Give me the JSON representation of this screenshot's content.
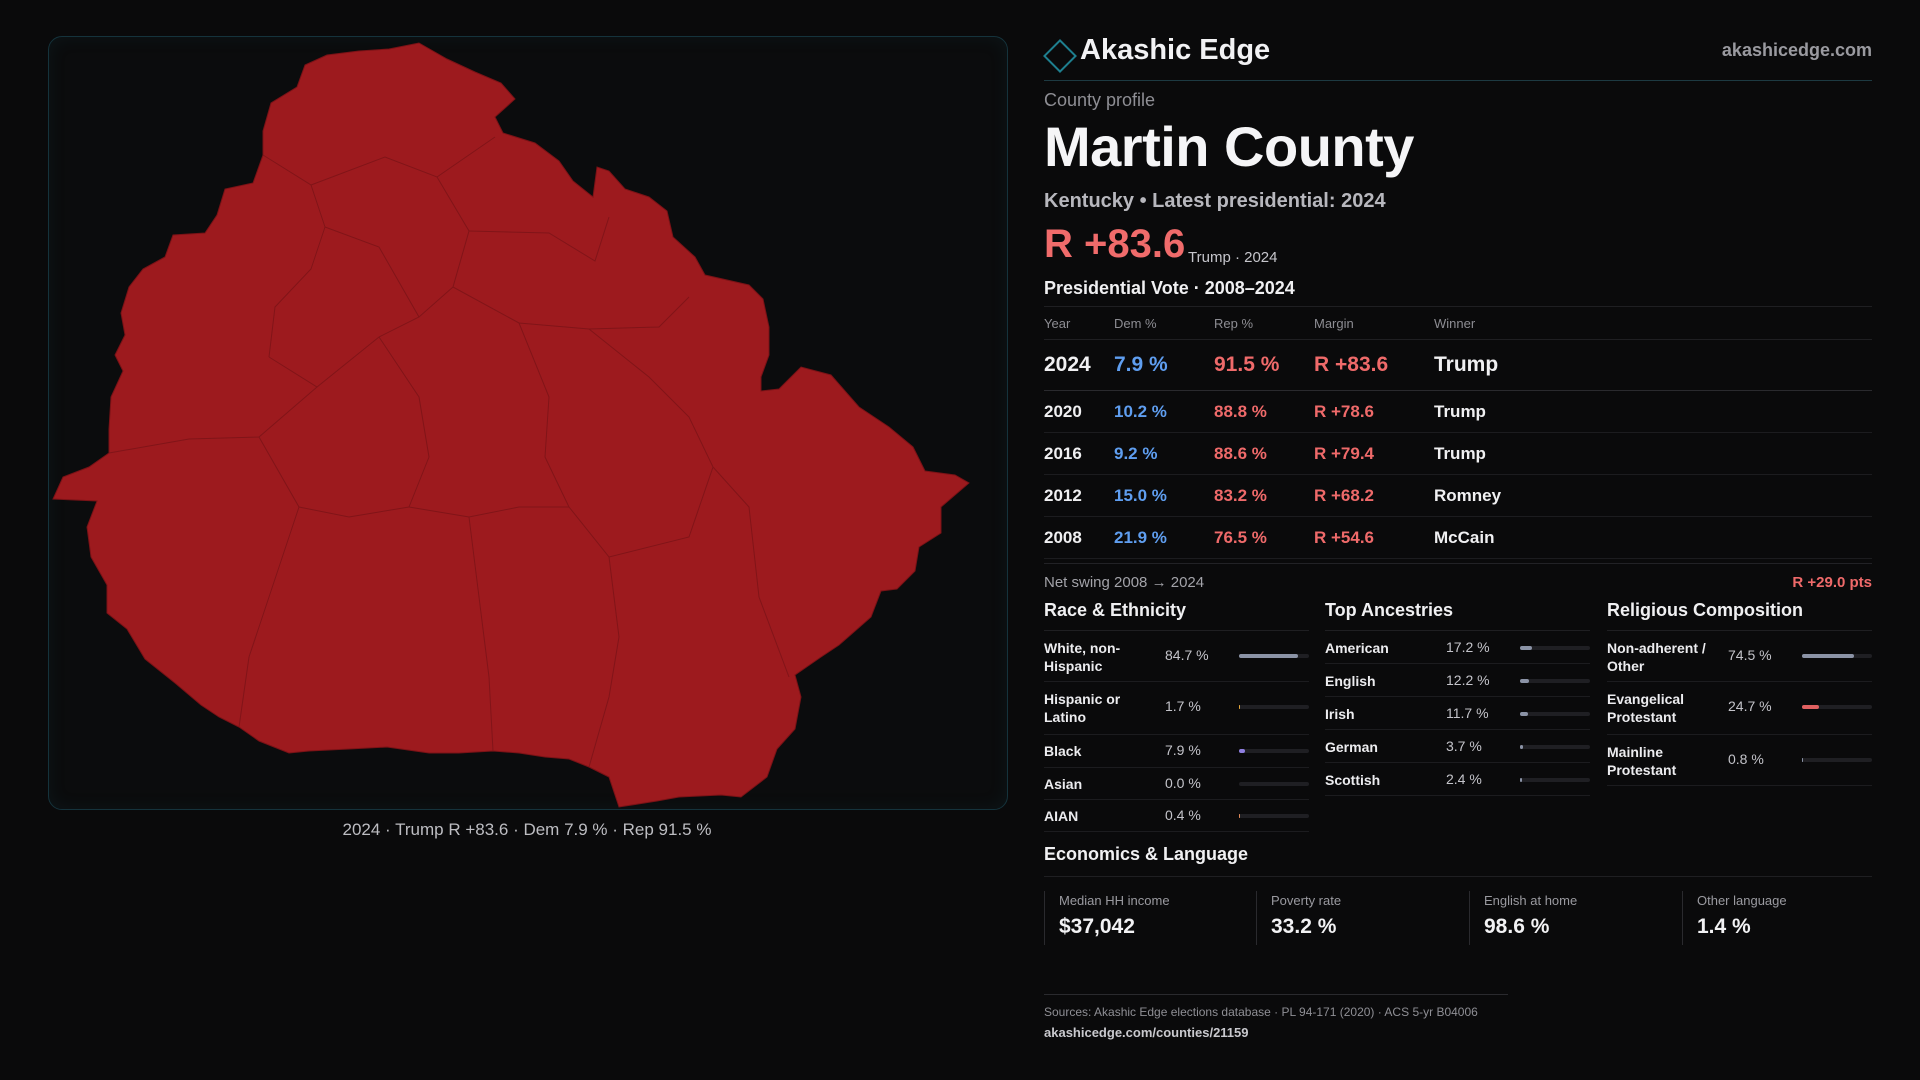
{
  "map": {
    "caption": "2024 · Trump R +83.6 · Dem 7.9 % · Rep 91.5 %",
    "fill_color": "#9d1a1e"
  },
  "brand": {
    "name": "Akashic Edge",
    "url": "akashicedge.com",
    "icon": "diamond-outline-icon"
  },
  "profile": {
    "eyebrow": "County profile",
    "title": "Martin County",
    "subtitle": "Kentucky • Latest presidential: 2024",
    "margin": "R +83.6",
    "margin_note": "Trump · 2024"
  },
  "votes": {
    "title": "Presidential Vote · 2008–2024",
    "headers": {
      "year": "Year",
      "dem": "Dem %",
      "rep": "Rep %",
      "margin": "Margin",
      "winner": "Winner"
    },
    "rows": [
      {
        "year": "2024",
        "dem": "7.9 %",
        "rep": "91.5 %",
        "margin": "R +83.6",
        "winner": "Trump"
      },
      {
        "year": "2020",
        "dem": "10.2 %",
        "rep": "88.8 %",
        "margin": "R +78.6",
        "winner": "Trump"
      },
      {
        "year": "2016",
        "dem": "9.2 %",
        "rep": "88.6 %",
        "margin": "R +79.4",
        "winner": "Trump"
      },
      {
        "year": "2012",
        "dem": "15.0 %",
        "rep": "83.2 %",
        "margin": "R +68.2",
        "winner": "Romney"
      },
      {
        "year": "2008",
        "dem": "21.9 %",
        "rep": "76.5 %",
        "margin": "R +54.6",
        "winner": "McCain"
      }
    ]
  },
  "swing": {
    "label": "Net swing 2008 → 2024",
    "value": "R +29.0 pts"
  },
  "race": {
    "title": "Race & Ethnicity",
    "rows": [
      {
        "label": "White, non-Hispanic",
        "value": "84.7 %",
        "pct": 84.7,
        "color": "#8b93a6"
      },
      {
        "label": "Hispanic or Latino",
        "value": "1.7 %",
        "pct": 1.7,
        "color": "#e3a63b"
      },
      {
        "label": "Black",
        "value": "7.9 %",
        "pct": 7.9,
        "color": "#8f7fe0"
      },
      {
        "label": "Asian",
        "value": "0.0 %",
        "pct": 0.0,
        "color": "#5fb0a0"
      },
      {
        "label": "AIAN",
        "value": "0.4 %",
        "pct": 0.4,
        "color": "#e08a5a"
      }
    ]
  },
  "ancestry": {
    "title": "Top Ancestries",
    "rows": [
      {
        "label": "American",
        "value": "17.2 %",
        "pct": 17.2,
        "color": "#8b93a6"
      },
      {
        "label": "English",
        "value": "12.2 %",
        "pct": 12.2,
        "color": "#8b93a6"
      },
      {
        "label": "Irish",
        "value": "11.7 %",
        "pct": 11.7,
        "color": "#8b93a6"
      },
      {
        "label": "German",
        "value": "3.7 %",
        "pct": 3.7,
        "color": "#8b93a6"
      },
      {
        "label": "Scottish",
        "value": "2.4 %",
        "pct": 2.4,
        "color": "#8b93a6"
      }
    ]
  },
  "religion": {
    "title": "Religious Composition",
    "rows": [
      {
        "label": "Non-adherent / Other",
        "value": "74.5 %",
        "pct": 74.5,
        "color": "#8b93a6"
      },
      {
        "label": "Evangelical Protestant",
        "value": "24.7 %",
        "pct": 24.7,
        "color": "#e06060"
      },
      {
        "label": "Mainline Protestant",
        "value": "0.8 %",
        "pct": 0.8,
        "color": "#8b93a6"
      }
    ]
  },
  "economics": {
    "title": "Economics & Language",
    "stats": [
      {
        "label": "Median HH income",
        "value": "$37,042"
      },
      {
        "label": "Poverty rate",
        "value": "33.2 %"
      },
      {
        "label": "English at home",
        "value": "98.6 %"
      },
      {
        "label": "Other language",
        "value": "1.4 %"
      }
    ]
  },
  "sources": {
    "line": "Sources: Akashic Edge elections database · PL 94-171 (2020) · ACS 5-yr B04006",
    "url": "akashicedge.com/counties/21159"
  }
}
